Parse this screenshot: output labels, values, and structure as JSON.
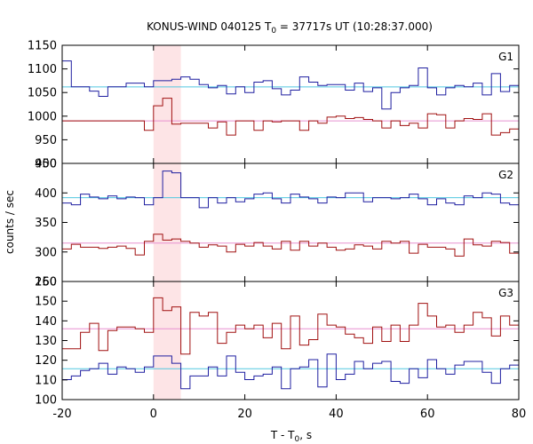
{
  "chart_data": {
    "type": "line",
    "title_main": "KONUS-WIND 040125 T",
    "title_sub": "0",
    "title_rest": " = 37717s UT (10:28:37.000)",
    "xlabel_main": "T - T",
    "xlabel_sub": "0",
    "xlabel_rest": ", s",
    "ylabel": "counts / sec",
    "xlim": [
      -20,
      80
    ],
    "x_ticks": [
      "-20",
      "0",
      "20",
      "40",
      "60",
      "80"
    ],
    "highlight_interval": [
      0,
      6
    ],
    "colors": {
      "dark_blue": "#1f1fa0",
      "dark_red": "#a01010",
      "cyan": "#52c8e0",
      "pink": "#e890d0",
      "highlight": "#fde4e6"
    },
    "bin_edges": [
      -20,
      -18,
      -16,
      -14,
      -12,
      -10,
      -8,
      -6,
      -4,
      -2,
      0,
      2,
      4,
      6,
      8,
      10,
      12,
      14,
      16,
      18,
      20,
      22,
      24,
      26,
      28,
      30,
      32,
      34,
      36,
      38,
      40,
      42,
      44,
      46,
      48,
      50,
      52,
      54,
      56,
      58,
      60,
      62,
      64,
      66,
      68,
      70,
      72,
      74,
      76,
      78,
      80
    ],
    "panels": [
      {
        "label": "G1",
        "ylim": [
          900,
          1150
        ],
        "y_ticks": [
          "900",
          "950",
          "1000",
          "1050",
          "1100",
          "1150"
        ],
        "series": [
          {
            "color": "dark_blue",
            "values": [
              1117,
              1062,
              1062,
              1053,
              1042,
              1062,
              1062,
              1070,
              1070,
              1062,
              1075,
              1075,
              1078,
              1083,
              1078,
              1067,
              1060,
              1065,
              1047,
              1062,
              1050,
              1072,
              1075,
              1058,
              1045,
              1055,
              1083,
              1072,
              1065,
              1067,
              1067,
              1055,
              1070,
              1052,
              1060,
              1015,
              1050,
              1060,
              1065,
              1102,
              1060,
              1045,
              1060,
              1065,
              1062,
              1070,
              1045,
              1090,
              1052,
              1065
            ]
          },
          {
            "color": "dark_red",
            "values": [
              990,
              990,
              990,
              990,
              990,
              990,
              990,
              990,
              990,
              970,
              1022,
              1038,
              983,
              985,
              985,
              985,
              975,
              988,
              960,
              990,
              990,
              970,
              990,
              988,
              990,
              990,
              970,
              990,
              985,
              998,
              1000,
              995,
              997,
              993,
              990,
              975,
              990,
              980,
              985,
              975,
              1005,
              1003,
              975,
              990,
              995,
              993,
              1005,
              960,
              965,
              973
            ]
          }
        ],
        "background": [
          {
            "color": "cyan",
            "value": 1062
          },
          {
            "color": "pink",
            "value": 990
          }
        ]
      },
      {
        "label": "G2",
        "ylim": [
          250,
          450
        ],
        "y_ticks": [
          "250",
          "300",
          "350",
          "400",
          "450"
        ],
        "series": [
          {
            "color": "dark_blue",
            "values": [
              383,
              380,
              398,
              393,
              390,
              395,
              390,
              393,
              392,
              380,
              392,
              437,
              434,
              392,
              392,
              375,
              392,
              383,
              392,
              385,
              390,
              398,
              400,
              390,
              383,
              398,
              393,
              390,
              383,
              393,
              392,
              400,
              400,
              385,
              392,
              392,
              390,
              392,
              398,
              390,
              380,
              390,
              383,
              380,
              395,
              392,
              400,
              398,
              383,
              380
            ]
          },
          {
            "color": "dark_red",
            "values": [
              305,
              313,
              308,
              308,
              306,
              308,
              310,
              306,
              295,
              318,
              330,
              320,
              322,
              318,
              315,
              308,
              312,
              310,
              300,
              313,
              310,
              316,
              310,
              305,
              318,
              303,
              318,
              310,
              315,
              308,
              303,
              305,
              312,
              310,
              305,
              318,
              315,
              318,
              298,
              313,
              308,
              308,
              305,
              293,
              322,
              312,
              310,
              318,
              316,
              298
            ]
          }
        ],
        "background": [
          {
            "color": "cyan",
            "value": 392
          },
          {
            "color": "pink",
            "value": 315
          }
        ]
      },
      {
        "label": "G3",
        "ylim": [
          100,
          165
        ],
        "y_ticks": [
          "100",
          "110",
          "120",
          "130",
          "140",
          "150",
          "160"
        ],
        "series": [
          {
            "color": "dark_blue",
            "values": [
              111,
              113,
              116,
              117,
              120,
              114,
              118,
              117,
              115,
              118,
              124,
              124,
              120,
              106,
              113,
              113,
              118,
              113,
              124,
              115,
              111,
              113,
              114,
              118,
              106,
              117,
              118,
              122,
              107,
              125,
              111,
              114,
              121,
              117,
              120,
              121,
              110,
              109,
              117,
              112,
              122,
              117,
              114,
              119,
              121,
              121,
              115,
              109,
              117,
              119
            ]
          },
          {
            "color": "dark_red",
            "values": [
              128,
              128,
              137,
              142,
              127,
              138,
              140,
              140,
              139,
              137,
              156,
              149,
              151,
              125,
              148,
              146,
              148,
              131,
              137,
              141,
              139,
              141,
              134,
              142,
              128,
              146,
              130,
              133,
              147,
              141,
              140,
              136,
              134,
              131,
              140,
              132,
              141,
              132,
              141,
              153,
              146,
              140,
              141,
              137,
              141,
              148,
              145,
              135,
              146,
              141
            ]
          }
        ],
        "background": [
          {
            "color": "cyan",
            "value": 117
          },
          {
            "color": "pink",
            "value": 139
          }
        ]
      }
    ]
  }
}
